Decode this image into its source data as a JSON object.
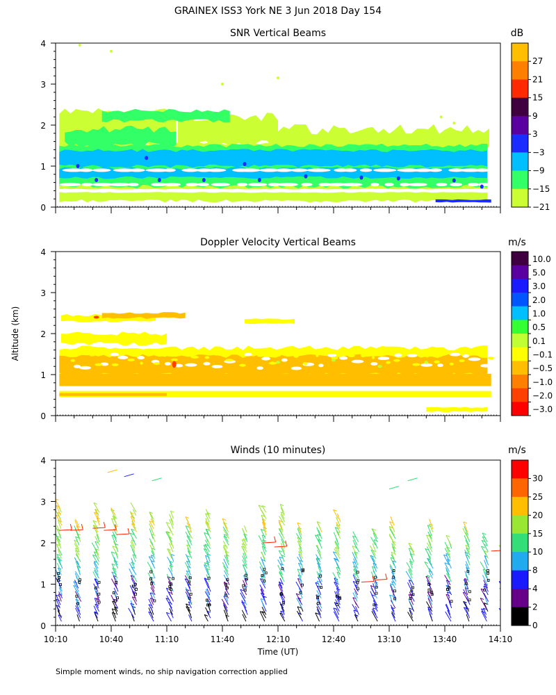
{
  "page": {
    "title": "GRAINEX ISS3 York NE   3 Jun 2018 Day 154",
    "y_axis_label": "Altitude (km)",
    "x_axis_label": "Time (UT)",
    "footnote": "Simple moment winds, no ship navigation correction applied",
    "time_ticks": [
      "10:10",
      "10:40",
      "11:10",
      "11:40",
      "12:10",
      "12:40",
      "13:10",
      "13:40",
      "14:10"
    ]
  },
  "chart_data": [
    {
      "type": "heatmap",
      "title": "SNR Vertical Beams",
      "ylabel": "Altitude (km)",
      "ylim": [
        0,
        4
      ],
      "yticks": [
        "0",
        "1",
        "2",
        "3",
        "4"
      ],
      "xlim": [
        "10:10",
        "14:10"
      ],
      "colorbar": {
        "unit": "dB",
        "labels": [
          "27",
          "21",
          "15",
          "9",
          "3",
          "−3",
          "−9",
          "−15",
          "−21"
        ],
        "colors": [
          "#ffbf00",
          "#ff8000",
          "#ff2a00",
          "#3f003f",
          "#5a00a0",
          "#1a2cff",
          "#00bfff",
          "#33ff66",
          "#ccff33"
        ]
      },
      "layers_km": [
        {
          "bottom": 0.1,
          "top": 0.5,
          "level": "−21"
        },
        {
          "bottom": 0.5,
          "top": 1.0,
          "level": "−15"
        },
        {
          "bottom": 1.0,
          "top": 1.5,
          "level": "−9"
        },
        {
          "bottom": 1.5,
          "top": 2.4,
          "level": "−21"
        }
      ]
    },
    {
      "type": "heatmap",
      "title": "Doppler Velocity Vertical Beams",
      "ylabel": "Altitude (km)",
      "ylim": [
        0,
        4
      ],
      "yticks": [
        "0",
        "1",
        "2",
        "3",
        "4"
      ],
      "xlim": [
        "10:10",
        "14:10"
      ],
      "colorbar": {
        "unit": "m/s",
        "labels": [
          "10.0",
          "5.0",
          "3.0",
          "2.0",
          "1.0",
          "0.5",
          "0.1",
          "−0.1",
          "−0.5",
          "−1.0",
          "−2.0",
          "−3.0"
        ],
        "colors": [
          "#3f003f",
          "#5a00a0",
          "#1a1aff",
          "#0055ff",
          "#00bfff",
          "#33ff33",
          "#bfff33",
          "#ffff00",
          "#ffbf00",
          "#ff8000",
          "#ff4000",
          "#ff0000"
        ]
      },
      "layers_km": [
        {
          "bottom": 0.5,
          "top": 1.0,
          "level": "−0.5"
        },
        {
          "bottom": 1.0,
          "top": 1.7,
          "level": "−0.1"
        },
        {
          "bottom": 2.3,
          "top": 2.5,
          "level": "−0.1"
        }
      ]
    },
    {
      "type": "scatter",
      "title": "Winds (10 minutes)",
      "ylabel": "Altitude (km)",
      "xlabel": "Time (UT)",
      "ylim": [
        0,
        4
      ],
      "yticks": [
        "0",
        "1",
        "2",
        "3",
        "4"
      ],
      "xlim": [
        "10:10",
        "14:10"
      ],
      "colorbar": {
        "unit": "m/s",
        "labels": [
          "30",
          "25",
          "20",
          "15",
          "10",
          "8",
          "4",
          "2",
          "0"
        ],
        "colors": [
          "#ff0000",
          "#ff6600",
          "#ffbf00",
          "#99e633",
          "#33dd77",
          "#22aaee",
          "#1a1aff",
          "#660088",
          "#000000"
        ]
      },
      "profile_times_min": [
        0,
        10,
        20,
        30,
        40,
        50,
        60,
        70,
        80,
        90,
        100,
        110,
        120,
        130,
        140,
        150,
        160,
        170,
        180,
        190,
        200,
        210,
        220,
        230,
        240
      ],
      "profile_top_km": [
        2.9,
        2.5,
        2.8,
        2.7,
        2.8,
        2.6,
        2.6,
        2.5,
        2.7,
        2.4,
        2.3,
        2.8,
        2.8,
        2.3,
        2.4,
        2.6,
        2.1,
        2.2,
        2.5,
        1.8,
        2.4,
        2.0,
        2.3,
        2.1,
        2.1
      ]
    }
  ]
}
